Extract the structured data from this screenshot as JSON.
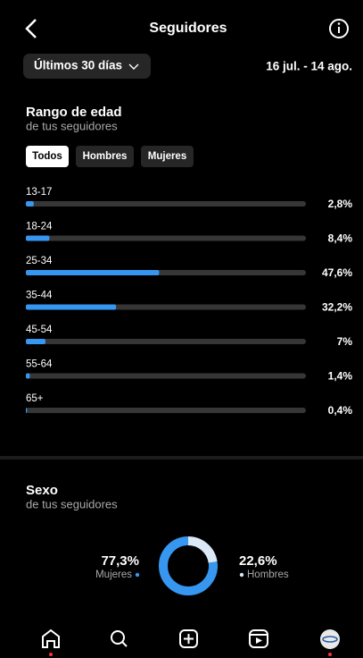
{
  "header": {
    "title": "Seguidores"
  },
  "filter": {
    "period": "Últimos 30 días",
    "date_range": "16 jul. - 14 ago."
  },
  "age_tabs": [
    "Todos",
    "Hombres",
    "Mujeres"
  ],
  "chart_data": [
    {
      "type": "bar",
      "title": "Rango de edad",
      "subtitle": "de tus seguidores",
      "categories": [
        "13-17",
        "18-24",
        "25-34",
        "35-44",
        "45-54",
        "55-64",
        "65+"
      ],
      "values": [
        2.8,
        8.4,
        47.6,
        32.2,
        7,
        1.4,
        0.4
      ],
      "value_labels": [
        "2,8%",
        "8,4%",
        "47,6%",
        "32,2%",
        "7%",
        "1,4%",
        "0,4%"
      ],
      "xlim": [
        0,
        100
      ],
      "color": "#3797f0"
    },
    {
      "type": "pie",
      "title": "Sexo",
      "subtitle": "de tus seguidores",
      "categories": [
        "Mujeres",
        "Hombres"
      ],
      "values": [
        77.3,
        22.6
      ],
      "value_labels": [
        "77,3%",
        "22,6%"
      ],
      "colors": [
        "#3797f0",
        "#dbe8f6"
      ]
    }
  ]
}
